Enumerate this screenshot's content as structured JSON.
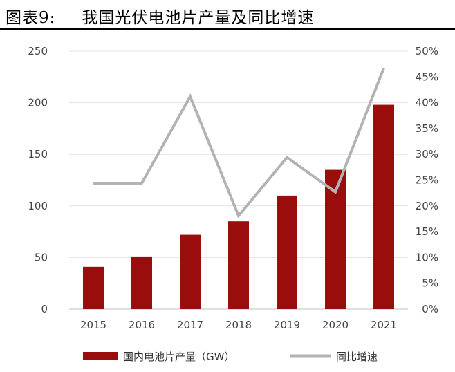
{
  "figure": {
    "number": "图表9:",
    "title": "我国光伏电池片产量及同比增速"
  },
  "chart_data": {
    "type": "bar",
    "categories": [
      "2015",
      "2016",
      "2017",
      "2018",
      "2019",
      "2020",
      "2021"
    ],
    "series": [
      {
        "name": "国内电池片产量（GW）",
        "type": "bar",
        "axis": "left",
        "color": "#9a0d0d",
        "values": [
          41,
          51,
          72,
          85,
          110,
          135,
          198
        ]
      },
      {
        "name": "同比增速",
        "type": "line",
        "axis": "right",
        "color": "#b3b3b3",
        "values": [
          24.4,
          24.4,
          41.2,
          18.1,
          29.4,
          22.7,
          46.7
        ]
      }
    ],
    "y_left": {
      "min": 0,
      "max": 250,
      "step": 50,
      "ticks": [
        "0",
        "50",
        "100",
        "150",
        "200",
        "250"
      ]
    },
    "y_right": {
      "min": 0,
      "max": 50,
      "step": 5,
      "ticks": [
        "0%",
        "5%",
        "10%",
        "15%",
        "20%",
        "25%",
        "30%",
        "35%",
        "40%",
        "45%",
        "50%"
      ]
    },
    "grid": "horizontal",
    "legend_position": "bottom"
  }
}
